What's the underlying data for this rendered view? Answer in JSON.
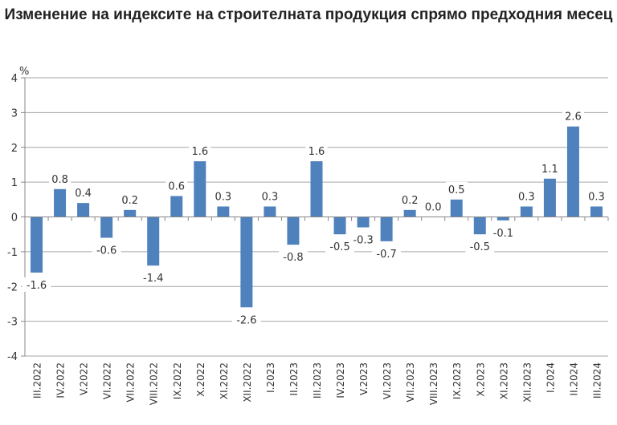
{
  "chart_data": {
    "type": "bar",
    "title": "Изменение на индексите на строителната продукция спрямо предходния месец",
    "ylabel": "%",
    "xlabel": "",
    "ylim": [
      -4,
      4
    ],
    "yticks": [
      -4,
      -3,
      -2,
      -1,
      0,
      1,
      2,
      3,
      4
    ],
    "grid": true,
    "categories": [
      "III.2022",
      "IV.2022",
      "V.2022",
      "VI.2022",
      "VII.2022",
      "VIII.2022",
      "IX.2022",
      "X.2022",
      "XI.2022",
      "XII.2022",
      "I.2023",
      "II.2023",
      "III.2023",
      "IV.2023",
      "V.2023",
      "VI.2023",
      "VII.2023",
      "VIII.2023",
      "IX.2023",
      "X.2023",
      "XI.2023",
      "XII.2023",
      "I.2024",
      "II.2024",
      "III.2024"
    ],
    "values": [
      -1.6,
      0.8,
      0.4,
      -0.6,
      0.2,
      -1.4,
      0.6,
      1.6,
      0.3,
      -2.6,
      0.3,
      -0.8,
      1.6,
      -0.5,
      -0.3,
      -0.7,
      0.2,
      0.0,
      0.5,
      -0.5,
      -0.1,
      0.3,
      1.1,
      2.6,
      0.3
    ],
    "bar_color": "#4f81bd"
  }
}
